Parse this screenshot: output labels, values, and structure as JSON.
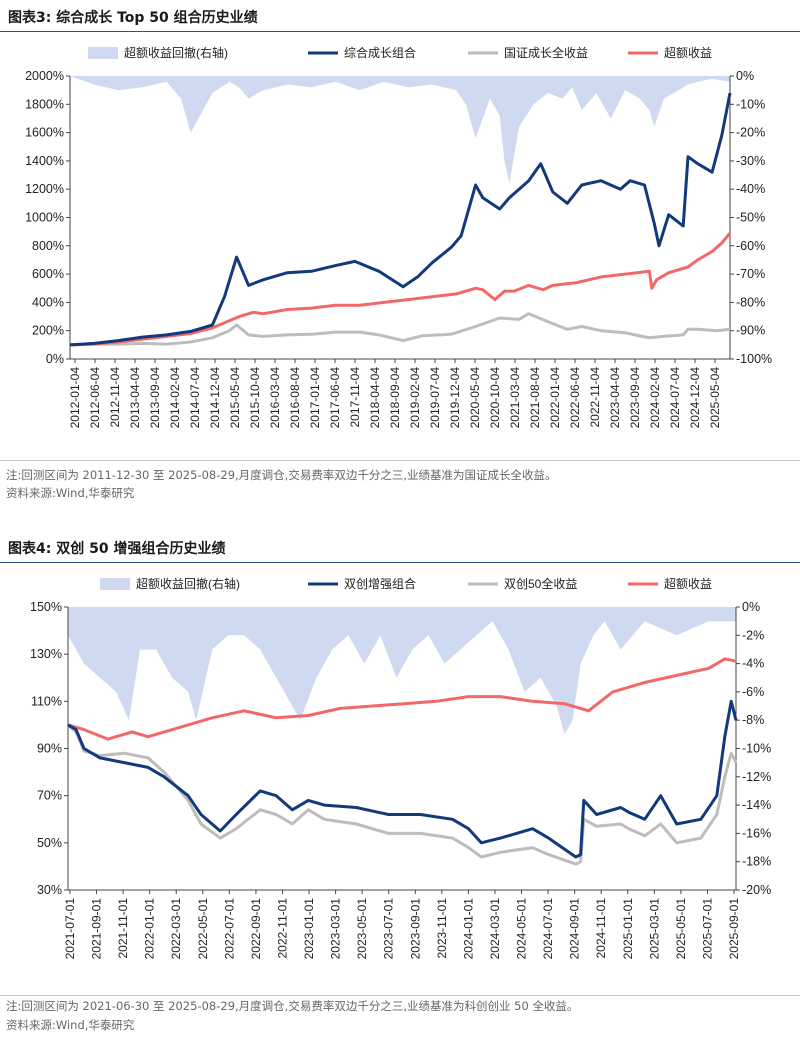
{
  "fig3": {
    "title": "图表3:  综合成长 Top 50 组合历史业绩",
    "note": "注:回测区间为 2011-12-30 至 2025-08-29,月度调仓,交易费率双边千分之三,业绩基准为国证成长全收益。",
    "source": "资料来源:Wind,华泰研究"
  },
  "fig4": {
    "title": "图表4:  双创 50 增强组合历史业绩",
    "note": "注:回测区间为 2021-06-30 至 2025-08-29,月度调仓,交易费率双边千分之三,业绩基准为科创创业 50 全收益。",
    "source": "资料来源:Wind,华泰研究"
  },
  "colors": {
    "portfolio": "#123a7a",
    "benchmark": "#bdbdbd",
    "excess": "#f26868",
    "drawdown": "#cfd9f0"
  },
  "chart_data": [
    {
      "type": "line",
      "legend": [
        "超额收益回撤(右轴)",
        "综合成长组合",
        "国证成长全收益",
        "超额收益"
      ],
      "ylim": [
        0,
        2000
      ],
      "y_ticks": [
        "0%",
        "200%",
        "400%",
        "600%",
        "800%",
        "1000%",
        "1200%",
        "1400%",
        "1600%",
        "1800%",
        "2000%"
      ],
      "y2lim": [
        -100,
        0
      ],
      "y2_ticks": [
        "-100%",
        "-90%",
        "-80%",
        "-70%",
        "-60%",
        "-50%",
        "-40%",
        "-30%",
        "-20%",
        "-10%",
        "0%"
      ],
      "x_ticks": [
        "2012-01-04",
        "2012-06-04",
        "2012-11-04",
        "2013-04-04",
        "2013-09-04",
        "2014-02-04",
        "2014-07-04",
        "2014-12-04",
        "2015-05-04",
        "2015-10-04",
        "2016-03-04",
        "2016-08-04",
        "2017-01-04",
        "2017-06-04",
        "2017-11-04",
        "2018-04-04",
        "2018-09-04",
        "2019-02-04",
        "2019-07-04",
        "2019-12-04",
        "2020-05-04",
        "2020-10-04",
        "2021-03-04",
        "2021-08-04",
        "2022-01-04",
        "2022-06-04",
        "2022-11-04",
        "2023-04-04",
        "2023-09-04",
        "2024-02-04",
        "2024-07-04",
        "2024-12-04",
        "2025-05-04"
      ],
      "x_range": [
        2012.0,
        2025.67
      ],
      "series": [
        {
          "name": "综合成长组合",
          "x": [
            2012.0,
            2012.5,
            2013.0,
            2013.5,
            2014.0,
            2014.5,
            2014.95,
            2015.2,
            2015.45,
            2015.7,
            2016.0,
            2016.5,
            2017.0,
            2017.5,
            2017.9,
            2018.4,
            2018.9,
            2019.2,
            2019.5,
            2019.9,
            2020.1,
            2020.4,
            2020.55,
            2020.9,
            2021.1,
            2021.5,
            2021.75,
            2022.0,
            2022.3,
            2022.6,
            2023.0,
            2023.4,
            2023.6,
            2023.9,
            2024.1,
            2024.2,
            2024.4,
            2024.7,
            2024.8,
            2025.0,
            2025.3,
            2025.5,
            2025.67
          ],
          "values": [
            100,
            110,
            130,
            155,
            170,
            195,
            240,
            440,
            720,
            520,
            560,
            610,
            620,
            660,
            690,
            620,
            510,
            580,
            680,
            790,
            870,
            1230,
            1140,
            1060,
            1140,
            1260,
            1380,
            1180,
            1100,
            1230,
            1260,
            1200,
            1260,
            1230,
            960,
            800,
            1020,
            940,
            1430,
            1380,
            1320,
            1580,
            1880
          ]
        },
        {
          "name": "国证成长全收益",
          "x": [
            2012.0,
            2012.5,
            2013.0,
            2013.5,
            2014.0,
            2014.5,
            2014.95,
            2015.3,
            2015.45,
            2015.7,
            2016.0,
            2016.5,
            2017.0,
            2017.5,
            2018.0,
            2018.4,
            2018.9,
            2019.3,
            2019.9,
            2020.4,
            2020.9,
            2021.3,
            2021.5,
            2022.0,
            2022.3,
            2022.6,
            2023.0,
            2023.5,
            2024.0,
            2024.3,
            2024.7,
            2024.8,
            2025.0,
            2025.4,
            2025.67
          ],
          "values": [
            100,
            105,
            105,
            110,
            105,
            120,
            150,
            200,
            240,
            170,
            160,
            170,
            175,
            190,
            190,
            170,
            130,
            165,
            175,
            230,
            290,
            280,
            320,
            250,
            210,
            230,
            200,
            185,
            150,
            160,
            170,
            210,
            210,
            200,
            210
          ]
        },
        {
          "name": "超额收益",
          "x": [
            2012.0,
            2012.5,
            2013.0,
            2013.5,
            2014.0,
            2014.5,
            2014.95,
            2015.3,
            2015.5,
            2015.8,
            2016.0,
            2016.5,
            2017.0,
            2017.5,
            2018.0,
            2018.5,
            2019.0,
            2019.5,
            2020.0,
            2020.4,
            2020.55,
            2020.8,
            2021.0,
            2021.2,
            2021.5,
            2021.8,
            2022.0,
            2022.5,
            2023.0,
            2023.5,
            2024.0,
            2024.05,
            2024.15,
            2024.4,
            2024.8,
            2025.0,
            2025.3,
            2025.5,
            2025.67
          ],
          "values": [
            100,
            105,
            120,
            140,
            160,
            180,
            220,
            270,
            300,
            330,
            320,
            350,
            360,
            380,
            380,
            400,
            420,
            440,
            460,
            500,
            490,
            420,
            480,
            480,
            520,
            490,
            520,
            540,
            580,
            600,
            620,
            500,
            560,
            610,
            650,
            700,
            760,
            820,
            890
          ]
        },
        {
          "name": "超额收益回撤(右轴)",
          "x": [
            2012.0,
            2012.5,
            2013.0,
            2013.5,
            2014.0,
            2014.3,
            2014.5,
            2014.95,
            2015.3,
            2015.5,
            2015.7,
            2016.0,
            2016.5,
            2017.0,
            2017.5,
            2018.0,
            2018.5,
            2019.0,
            2019.5,
            2020.0,
            2020.2,
            2020.4,
            2020.7,
            2020.9,
            2021.0,
            2021.1,
            2021.3,
            2021.6,
            2021.9,
            2022.2,
            2022.4,
            2022.6,
            2022.9,
            2023.2,
            2023.5,
            2023.8,
            2024.0,
            2024.1,
            2024.3,
            2024.6,
            2024.8,
            2025.0,
            2025.3,
            2025.67
          ],
          "values": [
            0,
            -3,
            -5,
            -4,
            -2,
            -8,
            -20,
            -6,
            -2,
            -4,
            -8,
            -5,
            -3,
            -4,
            -2,
            -5,
            -2,
            -4,
            -3,
            -5,
            -10,
            -22,
            -8,
            -14,
            -30,
            -38,
            -18,
            -10,
            -6,
            -8,
            -4,
            -12,
            -6,
            -15,
            -5,
            -8,
            -12,
            -18,
            -8,
            -5,
            -3,
            -2,
            -1,
            -2
          ]
        }
      ]
    },
    {
      "type": "line",
      "legend": [
        "超额收益回撤(右轴)",
        "双创增强组合",
        "双创50全收益",
        "超额收益"
      ],
      "ylim": [
        30,
        150
      ],
      "y_ticks": [
        "30%",
        "50%",
        "70%",
        "90%",
        "110%",
        "130%",
        "150%"
      ],
      "y2lim": [
        -20,
        0
      ],
      "y2_ticks": [
        "-20%",
        "-18%",
        "-16%",
        "-14%",
        "-12%",
        "-10%",
        "-8%",
        "-6%",
        "-4%",
        "-2%",
        "0%"
      ],
      "x_ticks": [
        "2021-07-01",
        "2021-09-01",
        "2021-11-01",
        "2022-01-01",
        "2022-03-01",
        "2022-05-01",
        "2022-07-01",
        "2022-09-01",
        "2022-11-01",
        "2023-01-01",
        "2023-03-01",
        "2023-05-01",
        "2023-07-01",
        "2023-09-01",
        "2023-11-01",
        "2024-01-01",
        "2024-03-01",
        "2024-05-01",
        "2024-07-01",
        "2024-09-01",
        "2024-11-01",
        "2025-01-01",
        "2025-03-01",
        "2025-05-01",
        "2025-07-01",
        "2025-09-01"
      ],
      "x_range": [
        2021.5,
        2025.67
      ],
      "series": [
        {
          "name": "双创增强组合",
          "x": [
            2021.5,
            2021.55,
            2021.6,
            2021.7,
            2021.85,
            2022.0,
            2022.1,
            2022.25,
            2022.33,
            2022.45,
            2022.55,
            2022.7,
            2022.8,
            2022.9,
            2023.0,
            2023.1,
            2023.3,
            2023.5,
            2023.7,
            2023.9,
            2024.0,
            2024.08,
            2024.2,
            2024.4,
            2024.5,
            2024.67,
            2024.7,
            2024.72,
            2024.8,
            2024.95,
            2025.0,
            2025.1,
            2025.2,
            2025.3,
            2025.45,
            2025.55,
            2025.6,
            2025.64,
            2025.67
          ],
          "values": [
            100,
            98,
            90,
            86,
            84,
            82,
            78,
            70,
            62,
            55,
            62,
            72,
            70,
            64,
            68,
            66,
            65,
            62,
            62,
            60,
            56,
            50,
            52,
            56,
            52,
            44,
            45,
            68,
            62,
            65,
            63,
            60,
            70,
            58,
            60,
            70,
            95,
            110,
            102
          ]
        },
        {
          "name": "双创50全收益",
          "x": [
            2021.5,
            2021.55,
            2021.6,
            2021.7,
            2021.85,
            2022.0,
            2022.1,
            2022.25,
            2022.33,
            2022.45,
            2022.55,
            2022.7,
            2022.8,
            2022.9,
            2023.0,
            2023.1,
            2023.3,
            2023.5,
            2023.7,
            2023.9,
            2024.0,
            2024.08,
            2024.2,
            2024.4,
            2024.5,
            2024.67,
            2024.7,
            2024.72,
            2024.8,
            2024.95,
            2025.0,
            2025.1,
            2025.2,
            2025.3,
            2025.45,
            2025.55,
            2025.6,
            2025.64,
            2025.67
          ],
          "values": [
            100,
            97,
            89,
            87,
            88,
            86,
            80,
            68,
            58,
            52,
            56,
            64,
            62,
            58,
            64,
            60,
            58,
            54,
            54,
            52,
            48,
            44,
            46,
            48,
            45,
            41,
            42,
            60,
            57,
            58,
            56,
            53,
            58,
            50,
            52,
            62,
            78,
            88,
            84
          ]
        },
        {
          "name": "超额收益",
          "x": [
            2021.5,
            2021.6,
            2021.75,
            2021.9,
            2022.0,
            2022.2,
            2022.4,
            2022.6,
            2022.8,
            2023.0,
            2023.2,
            2023.4,
            2023.6,
            2023.8,
            2024.0,
            2024.2,
            2024.4,
            2024.6,
            2024.75,
            2024.9,
            2025.1,
            2025.3,
            2025.5,
            2025.6,
            2025.67
          ],
          "values": [
            100,
            98,
            94,
            97,
            95,
            99,
            103,
            106,
            103,
            104,
            107,
            108,
            109,
            110,
            112,
            112,
            110,
            109,
            106,
            114,
            118,
            121,
            124,
            128,
            127
          ]
        },
        {
          "name": "超额收益回撤(右轴)",
          "x": [
            2021.5,
            2021.6,
            2021.7,
            2021.8,
            2021.88,
            2021.95,
            2022.05,
            2022.15,
            2022.25,
            2022.3,
            2022.4,
            2022.5,
            2022.6,
            2022.7,
            2022.8,
            2022.9,
            2022.95,
            2023.05,
            2023.15,
            2023.25,
            2023.35,
            2023.45,
            2023.55,
            2023.65,
            2023.75,
            2023.85,
            2023.95,
            2024.05,
            2024.15,
            2024.25,
            2024.35,
            2024.45,
            2024.55,
            2024.6,
            2024.65,
            2024.7,
            2024.78,
            2024.85,
            2024.95,
            2025.1,
            2025.3,
            2025.5,
            2025.6,
            2025.67
          ],
          "values": [
            -2,
            -4,
            -5,
            -6,
            -8,
            -3,
            -3,
            -5,
            -6,
            -8,
            -3,
            -2,
            -2,
            -3,
            -5,
            -7,
            -8,
            -5,
            -3,
            -2,
            -4,
            -2,
            -5,
            -3,
            -2,
            -4,
            -3,
            -2,
            -1,
            -3,
            -6,
            -5,
            -7,
            -9,
            -8,
            -4,
            -2,
            -1,
            -3,
            -1,
            -2,
            -1,
            -1,
            -1
          ]
        }
      ]
    }
  ]
}
